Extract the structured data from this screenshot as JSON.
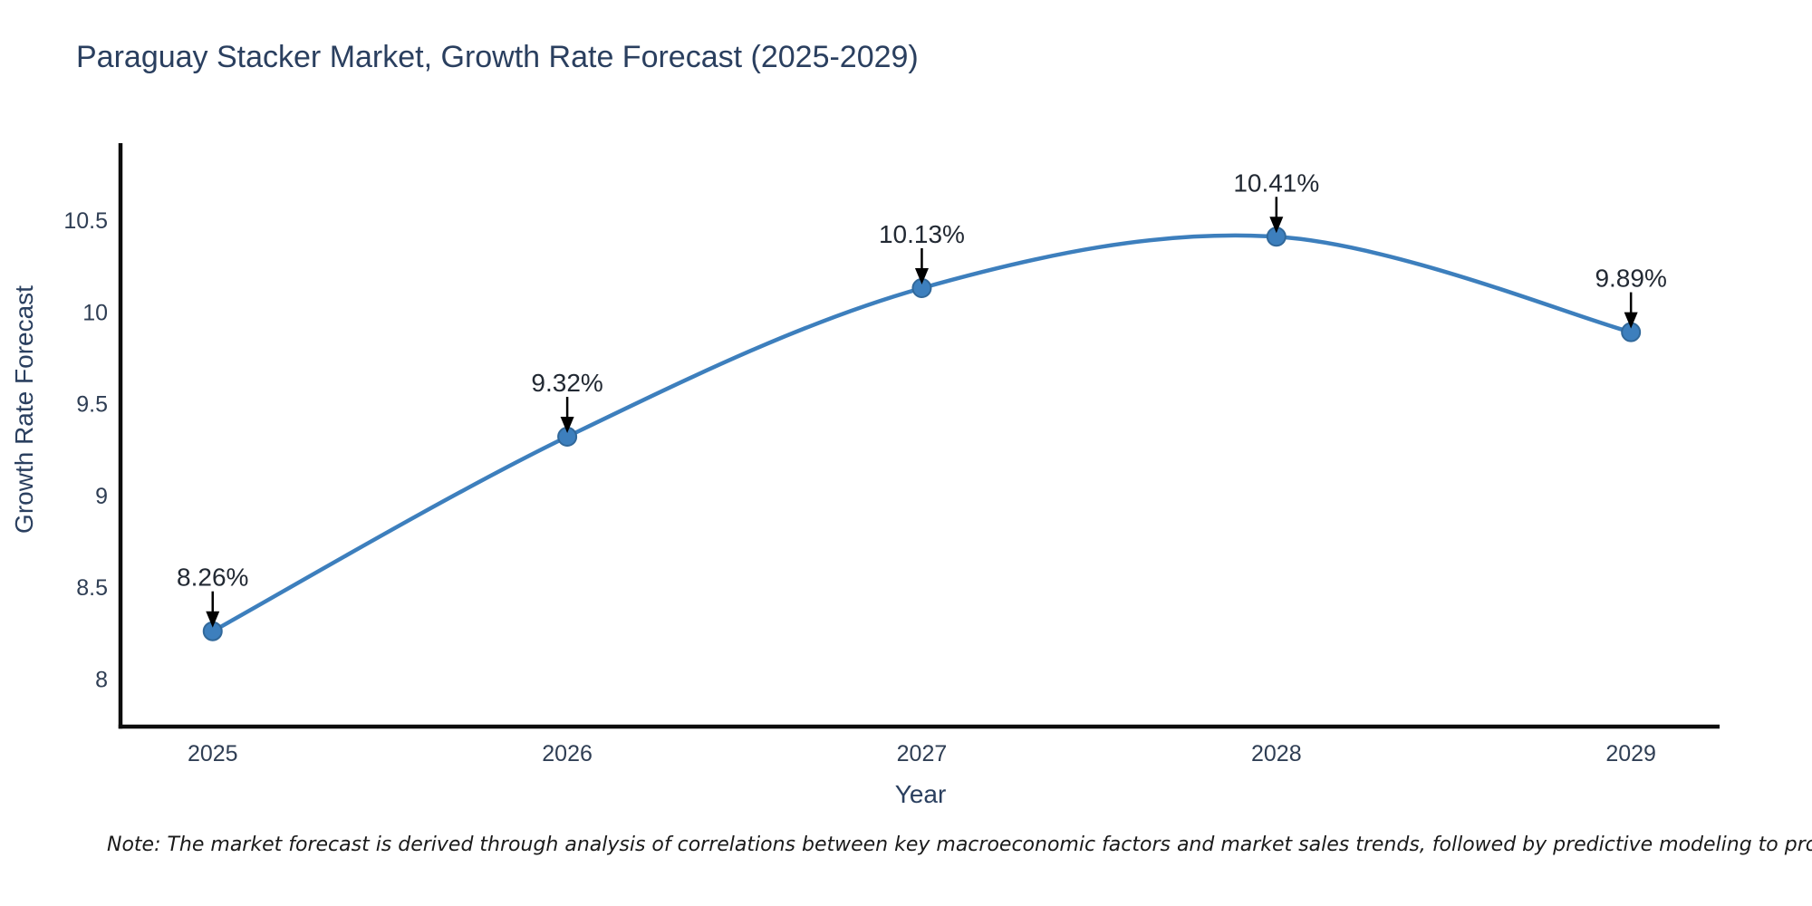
{
  "page": {
    "title": "Paraguay Stacker Market, Growth Rate Forecast (2025-2029)",
    "footnote": "Note: The market forecast is derived through analysis of correlations between key macroeconomic factors and market sales trends, followed by predictive modeling to project future sal"
  },
  "chart_data": {
    "type": "line",
    "title": "Paraguay Stacker Market, Growth Rate Forecast (2025-2029)",
    "xlabel": "Year",
    "ylabel": "Growth Rate Forecast",
    "x": [
      2025,
      2026,
      2027,
      2028,
      2029
    ],
    "y": [
      8.26,
      9.32,
      10.13,
      10.41,
      9.89
    ],
    "point_labels": [
      "8.26%",
      "9.32%",
      "10.13%",
      "10.41%",
      "9.89%"
    ],
    "x_tick_labels": [
      "2025",
      "2026",
      "2027",
      "2028",
      "2029"
    ],
    "y_ticks": [
      8,
      8.5,
      9,
      9.5,
      10,
      10.5
    ],
    "xlim": [
      2024.74,
      2029.25
    ],
    "ylim": [
      7.74,
      10.92
    ],
    "grid": false,
    "legend": false,
    "smooth": true,
    "annotation_style": "down-arrow",
    "colors": {
      "line": "#3d7fbd",
      "marker_fill": "#3d7fbd",
      "marker_edge": "#31689a",
      "axis": "#0d0d0d",
      "tick_label": "#2f3e54",
      "title": "#2a3f5f",
      "annotation_text": "#222933",
      "annotation_arrow": "#000000",
      "background": "#ffffff"
    }
  }
}
